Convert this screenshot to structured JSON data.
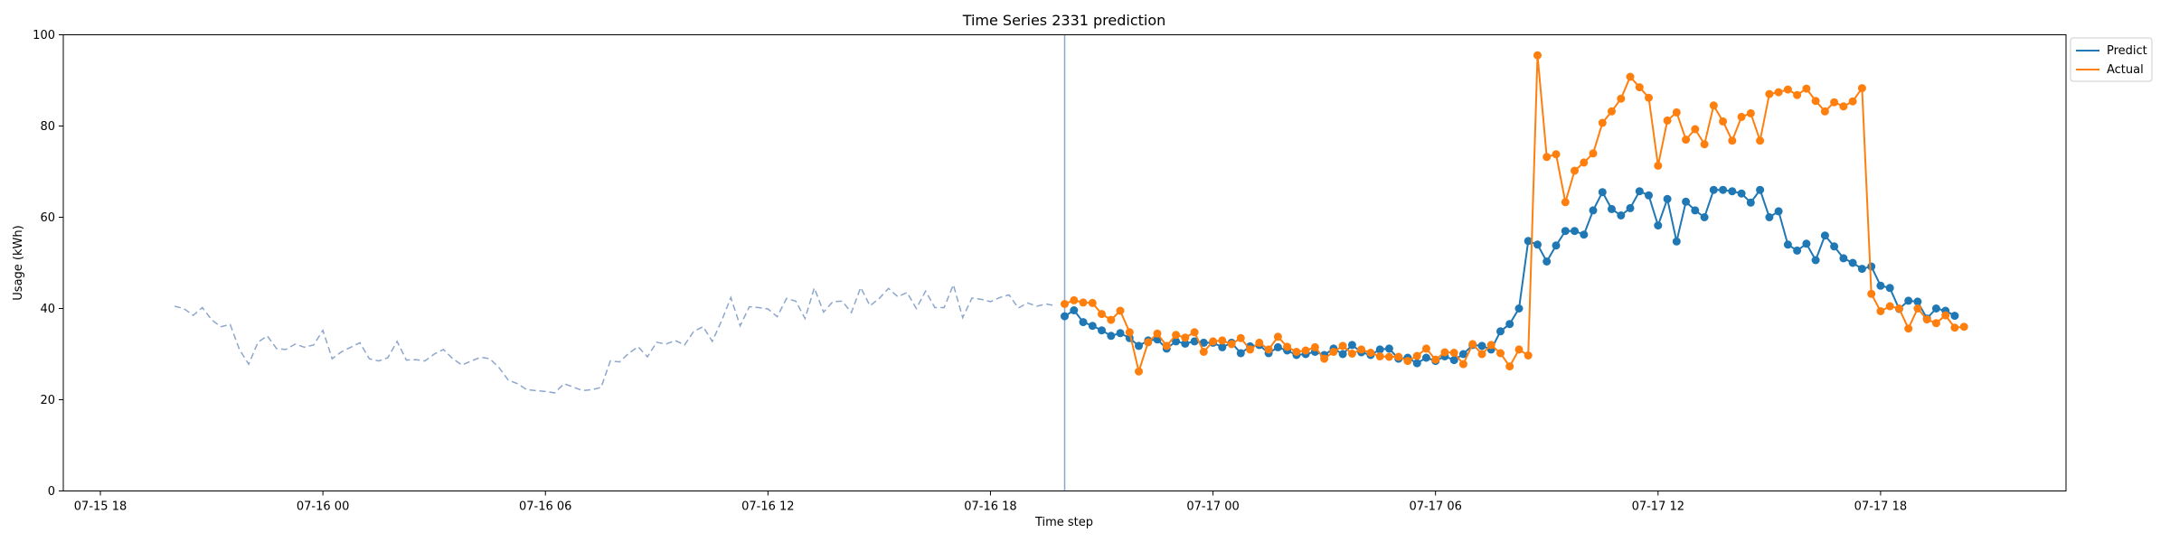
{
  "chart_data": {
    "type": "line",
    "title": "Time Series 2331 prediction",
    "xlabel": "Time step",
    "ylabel": "Usage (kWh)",
    "xlim": [
      "2024-07-15T17:00",
      "2024-07-17T23:00"
    ],
    "ylim": [
      0,
      100
    ],
    "x_ticks": [
      "07-15 18",
      "07-16 00",
      "07-16 06",
      "07-16 12",
      "07-16 18",
      "07-17 00",
      "07-17 06",
      "07-17 12",
      "07-17 18"
    ],
    "y_ticks": [
      0,
      20,
      40,
      60,
      80,
      100
    ],
    "grid": false,
    "legend_position": "upper-right-outside",
    "split_time": "2024-07-16T20:00",
    "history": {
      "start": "2024-07-15T20:00",
      "step_minutes": 15,
      "color": "#8da6cc",
      "values": [
        40.5,
        40,
        38.5,
        40.2,
        37.5,
        36,
        36.5,
        31,
        27.8,
        32.6,
        34,
        31.2,
        31,
        32.2,
        31.5,
        32,
        35.2,
        29,
        30.5,
        31.5,
        32.5,
        29,
        28.5,
        29.2,
        32.8,
        28.7,
        28.8,
        28.5,
        30,
        31,
        29,
        27.6,
        28.5,
        29.3,
        29,
        27,
        24.3,
        23.5,
        22.2,
        22,
        21.8,
        21.5,
        23.5,
        22.8,
        22,
        22.2,
        22.7,
        28.5,
        28.3,
        30.2,
        31.6,
        29.4,
        32.6,
        32.2,
        33,
        32,
        35,
        36,
        32.8,
        37.3,
        42.4,
        36.2,
        40.4,
        40.2,
        39.9,
        38.2,
        42.2,
        41.6,
        37.8,
        44.5,
        39.2,
        41.5,
        41.6,
        39.1,
        44.6,
        40.6,
        42.2,
        44.4,
        42.6,
        43.5,
        40,
        43.8,
        40.2,
        40.2,
        45.2,
        38,
        42.3,
        42,
        41.5,
        42.4,
        43,
        40.1,
        41.2,
        40.5,
        41,
        40.6
      ]
    },
    "series": [
      {
        "name": "Predict",
        "color": "#1f77b4",
        "start": "2024-07-16T20:00",
        "step_minutes": 15,
        "values": [
          38.3,
          39.6,
          37,
          36.2,
          35.2,
          34,
          34.6,
          33.5,
          31.8,
          33,
          33.2,
          31.2,
          32.8,
          32.3,
          32.8,
          32.5,
          32.5,
          31.5,
          32.5,
          30.2,
          31.7,
          32,
          30.2,
          31.5,
          30.8,
          29.8,
          30,
          30.5,
          29.8,
          31.2,
          30,
          32,
          30.4,
          29.8,
          31,
          31.2,
          29,
          29.2,
          28,
          29.2,
          28.5,
          29.5,
          28.7,
          30,
          32,
          31.8,
          31,
          35,
          36.6,
          40,
          54.8,
          54,
          50.3,
          53.8,
          57,
          57,
          56.2,
          61.5,
          65.5,
          61.8,
          60.4,
          62,
          65.7,
          64.8,
          58.2,
          64,
          54.7,
          63.4,
          61.5,
          60,
          66,
          66,
          65.7,
          65.2,
          63.2,
          66,
          60,
          61.3,
          54,
          52.7,
          54.2,
          50.6,
          56,
          53.6,
          51,
          50,
          48.7,
          49.2,
          45,
          44.5,
          39.9,
          41.7,
          41.5,
          37.8,
          40,
          39.5,
          38.4
        ]
      },
      {
        "name": "Actual",
        "color": "#ff7f0e",
        "start": "2024-07-16T20:00",
        "step_minutes": 15,
        "values": [
          41,
          41.8,
          41.3,
          41.2,
          38.8,
          37.5,
          39.5,
          34.8,
          26.2,
          32.6,
          34.5,
          31.8,
          34.2,
          33.6,
          34.8,
          30.5,
          32.8,
          33,
          32.2,
          33.5,
          31,
          32.5,
          31,
          33.8,
          31.6,
          30.5,
          30.8,
          31.5,
          29,
          30.5,
          31.8,
          30.1,
          31,
          30.3,
          29.5,
          29.4,
          29.4,
          28.5,
          29.6,
          31.2,
          28.8,
          30.4,
          30.3,
          27.8,
          32.2,
          30,
          32,
          30.2,
          27.3,
          31,
          29.7,
          95.5,
          73.2,
          73.8,
          63.3,
          70.2,
          72,
          74,
          80.7,
          83.2,
          86,
          90.8,
          88.5,
          86.2,
          71.3,
          81.2,
          83,
          77,
          79.3,
          76,
          84.5,
          81,
          76.8,
          82,
          82.8,
          76.8,
          87,
          87.4,
          88,
          86.8,
          88.2,
          85.5,
          83.2,
          85.2,
          84.3,
          85.4,
          88.3,
          43.2,
          39.4,
          40.5,
          40,
          35.6,
          40,
          37.6,
          36.8,
          38.5,
          35.8,
          36
        ]
      }
    ]
  }
}
